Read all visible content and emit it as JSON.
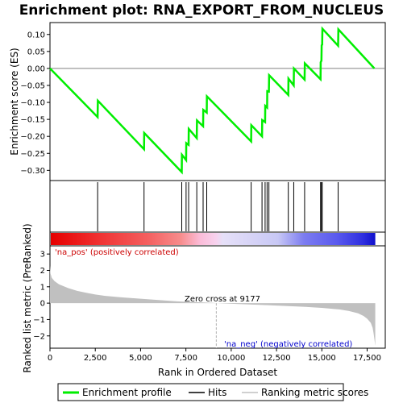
{
  "title": "Enrichment plot: RNA_EXPORT_FROM_NUCLEUS",
  "colors": {
    "enrichment_line": "#00ee00",
    "hits": "#000000",
    "metric_fill": "#c0c0c0",
    "pos_label": "#cc0000",
    "neg_label": "#0000cc",
    "zero_line": "#b0b0b0"
  },
  "chart_data": [
    {
      "type": "line",
      "panel": "enrichment-profile",
      "ylabel": "Enrichment score (ES)",
      "xlim": [
        0,
        18500
      ],
      "ylim": [
        -0.33,
        0.135
      ],
      "yticks": [
        -0.3,
        -0.25,
        -0.2,
        -0.15,
        -0.1,
        -0.05,
        0.0,
        0.05,
        0.1
      ],
      "ytick_labels": [
        "−0.30",
        "−0.25",
        "−0.20",
        "−0.15",
        "−0.10",
        "−0.05",
        "0.00",
        "0.05",
        "0.10"
      ],
      "series": [
        {
          "name": "Enrichment profile",
          "x": [
            0,
            2630,
            2640,
            5190,
            5200,
            7270,
            7280,
            7510,
            7520,
            7650,
            7660,
            8100,
            8110,
            8450,
            8460,
            8650,
            8660,
            11100,
            11110,
            11700,
            11710,
            11870,
            11880,
            11980,
            11990,
            12080,
            12090,
            13150,
            13160,
            13450,
            13460,
            14050,
            14060,
            14930,
            14940,
            14980,
            14990,
            15020,
            15030,
            15900,
            15910,
            17900
          ],
          "y": [
            0.0,
            -0.143,
            -0.095,
            -0.238,
            -0.19,
            -0.305,
            -0.254,
            -0.27,
            -0.22,
            -0.225,
            -0.178,
            -0.205,
            -0.153,
            -0.17,
            -0.122,
            -0.13,
            -0.082,
            -0.215,
            -0.167,
            -0.2,
            -0.152,
            -0.158,
            -0.11,
            -0.115,
            -0.067,
            -0.068,
            -0.02,
            -0.078,
            -0.03,
            -0.05,
            0.0,
            -0.033,
            0.015,
            -0.032,
            0.018,
            0.023,
            0.068,
            0.07,
            0.117,
            0.067,
            0.115,
            0.0
          ]
        }
      ]
    },
    {
      "type": "scatter",
      "panel": "hits",
      "series": [
        {
          "name": "Hits",
          "x": [
            2630,
            5190,
            7270,
            7510,
            7650,
            8100,
            8450,
            8650,
            11100,
            11700,
            11870,
            11980,
            12080,
            13150,
            13450,
            14050,
            14930,
            14980,
            15020,
            15900
          ]
        }
      ]
    },
    {
      "type": "area",
      "panel": "ranked-metric",
      "ylabel": "Ranked list metric (PreRanked)",
      "xlabel": "Rank in Ordered Dataset",
      "xlim": [
        0,
        18500
      ],
      "ylim": [
        -2.75,
        3.5
      ],
      "yticks": [
        -2,
        -1,
        0,
        1,
        2,
        3
      ],
      "ytick_labels": [
        "−2",
        "−1",
        "0",
        "1",
        "2",
        "3"
      ],
      "xticks": [
        0,
        2500,
        5000,
        7500,
        10000,
        12500,
        15000,
        17500
      ],
      "xtick_labels": [
        "0",
        "2,500",
        "5,000",
        "7,500",
        "10,000",
        "12,500",
        "15,000",
        "17,500"
      ],
      "series": [
        {
          "name": "Ranking metric scores",
          "x": [
            0,
            30,
            100,
            250,
            500,
            1000,
            1500,
            2000,
            2500,
            3000,
            4000,
            5000,
            6000,
            7000,
            8000,
            9000,
            9177,
            10000,
            11000,
            12000,
            13000,
            14000,
            15000,
            16000,
            16500,
            17000,
            17300,
            17500,
            17700,
            17800,
            17850,
            17900,
            17950
          ],
          "y": [
            2.3,
            1.8,
            1.55,
            1.35,
            1.15,
            0.92,
            0.75,
            0.63,
            0.53,
            0.45,
            0.35,
            0.27,
            0.19,
            0.11,
            0.06,
            0.02,
            0.0,
            -0.04,
            -0.08,
            -0.12,
            -0.17,
            -0.22,
            -0.29,
            -0.39,
            -0.48,
            -0.62,
            -0.78,
            -0.95,
            -1.2,
            -1.5,
            -1.8,
            -2.2,
            -2.6
          ]
        }
      ],
      "zero_cross_label": "Zero cross at 9177",
      "zero_cross": 9177,
      "pos_label": "'na_pos' (positively correlated)",
      "neg_label": "'na_neg' (negatively correlated)"
    }
  ],
  "legend": {
    "items": [
      {
        "label": "Enrichment profile",
        "color": "#00ee00"
      },
      {
        "label": "Hits",
        "color": "#000000"
      },
      {
        "label": "Ranking metric scores",
        "color": "#c0c0c0"
      }
    ]
  }
}
